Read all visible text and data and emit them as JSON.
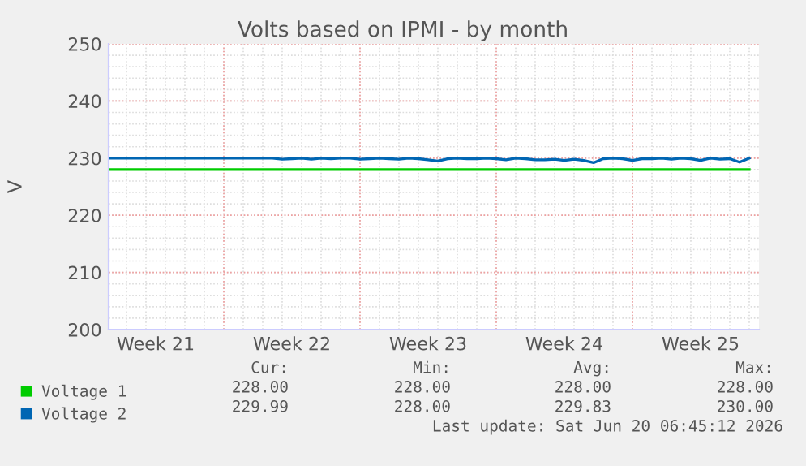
{
  "chart_data": {
    "type": "line",
    "title": "Volts based on IPMI - by month",
    "ylabel": "V",
    "xlim": [
      "2026-05-19T02:00",
      "2026-06-21T12:00"
    ],
    "xticks": [
      {
        "value": "2026-05-21T12:00",
        "label": "Week 21"
      },
      {
        "value": "2026-05-25",
        "label": null
      },
      {
        "value": "2026-05-28T12:00",
        "label": "Week 22"
      },
      {
        "value": "2026-06-01",
        "label": null
      },
      {
        "value": "2026-06-04T12:00",
        "label": "Week 23"
      },
      {
        "value": "2026-06-08",
        "label": null
      },
      {
        "value": "2026-06-11T12:00",
        "label": "Week 24"
      },
      {
        "value": "2026-06-15",
        "label": null
      },
      {
        "value": "2026-06-18T12:00",
        "label": "Week 25"
      }
    ],
    "ylim": [
      200,
      250
    ],
    "yticks": [
      200,
      210,
      220,
      230,
      240,
      250
    ],
    "grid": true,
    "legend": "bottom left",
    "series": [
      {
        "name": "Voltage 1",
        "color": "#00cc00",
        "x": [
          "2026-05-19T03:00",
          "2026-06-21T00:00"
        ],
        "values": [
          228,
          228
        ]
      },
      {
        "name": "Voltage 2",
        "color": "#0066b3",
        "x": [
          "2026-05-19T03:00",
          "2026-05-27T00:00",
          "2026-05-27T12:00",
          "2026-05-28T00:00",
          "2026-05-28T12:00",
          "2026-05-29T00:00",
          "2026-05-29T12:00",
          "2026-05-30T00:00",
          "2026-05-30T12:00",
          "2026-05-31T00:00",
          "2026-05-31T12:00",
          "2026-06-01T00:00",
          "2026-06-01T12:00",
          "2026-06-02T00:00",
          "2026-06-02T12:00",
          "2026-06-03T00:00",
          "2026-06-03T12:00",
          "2026-06-04T00:00",
          "2026-06-04T12:00",
          "2026-06-05T00:00",
          "2026-06-05T12:00",
          "2026-06-06T00:00",
          "2026-06-06T12:00",
          "2026-06-07T00:00",
          "2026-06-07T12:00",
          "2026-06-08T00:00",
          "2026-06-08T12:00",
          "2026-06-09T00:00",
          "2026-06-09T12:00",
          "2026-06-10T00:00",
          "2026-06-10T12:00",
          "2026-06-11T00:00",
          "2026-06-11T12:00",
          "2026-06-12T00:00",
          "2026-06-12T12:00",
          "2026-06-13T00:00",
          "2026-06-13T12:00",
          "2026-06-14T00:00",
          "2026-06-14T12:00",
          "2026-06-15T00:00",
          "2026-06-15T12:00",
          "2026-06-16T00:00",
          "2026-06-16T12:00",
          "2026-06-17T00:00",
          "2026-06-17T12:00",
          "2026-06-18T00:00",
          "2026-06-18T12:00",
          "2026-06-19T00:00",
          "2026-06-19T12:00",
          "2026-06-20T00:00",
          "2026-06-20T12:00",
          "2026-06-21T00:00"
        ],
        "values": [
          230,
          230,
          230,
          229.8,
          229.9,
          230,
          229.8,
          230,
          229.9,
          230,
          230,
          229.8,
          229.9,
          230,
          229.9,
          229.8,
          230,
          229.9,
          229.7,
          229.5,
          229.9,
          230,
          229.9,
          229.9,
          230,
          229.9,
          229.7,
          230,
          229.9,
          229.7,
          229.7,
          229.8,
          229.6,
          229.8,
          229.6,
          229.2,
          229.9,
          230,
          229.9,
          229.6,
          229.9,
          229.9,
          230,
          229.8,
          230,
          229.9,
          229.6,
          230,
          229.8,
          229.9,
          229.3,
          230
        ]
      }
    ],
    "annotations": [
      "Cur:",
      "Min:",
      "Avg:",
      "Max:",
      "228.00",
      "228.00",
      "228.00",
      "228.00",
      "229.99",
      "228.00",
      "229.83",
      "230.00",
      "Last update: Sat Jun 20 06:45:12 2026"
    ]
  }
}
